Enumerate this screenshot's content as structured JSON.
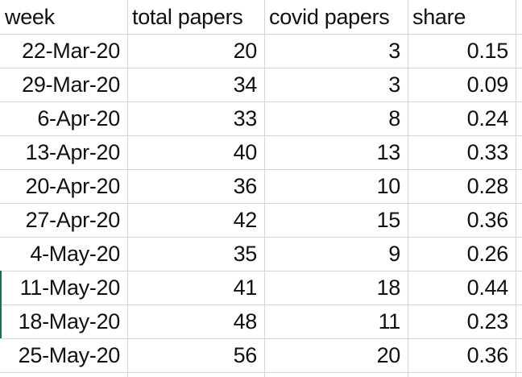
{
  "columns": [
    "week",
    "total papers",
    "covid papers",
    "share"
  ],
  "rows": [
    [
      "22-Mar-20",
      "20",
      "3",
      "0.15"
    ],
    [
      "29-Mar-20",
      "34",
      "3",
      "0.09"
    ],
    [
      "6-Apr-20",
      "33",
      "8",
      "0.24"
    ],
    [
      "13-Apr-20",
      "40",
      "13",
      "0.33"
    ],
    [
      "20-Apr-20",
      "36",
      "10",
      "0.28"
    ],
    [
      "27-Apr-20",
      "42",
      "15",
      "0.36"
    ],
    [
      "4-May-20",
      "35",
      "9",
      "0.26"
    ],
    [
      "11-May-20",
      "41",
      "18",
      "0.44"
    ],
    [
      "18-May-20",
      "48",
      "11",
      "0.23"
    ],
    [
      "25-May-20",
      "56",
      "20",
      "0.36"
    ]
  ],
  "colors": {
    "gridline": "#d4d4d4",
    "selection_edge": "#1e7145",
    "text": "#111111"
  }
}
